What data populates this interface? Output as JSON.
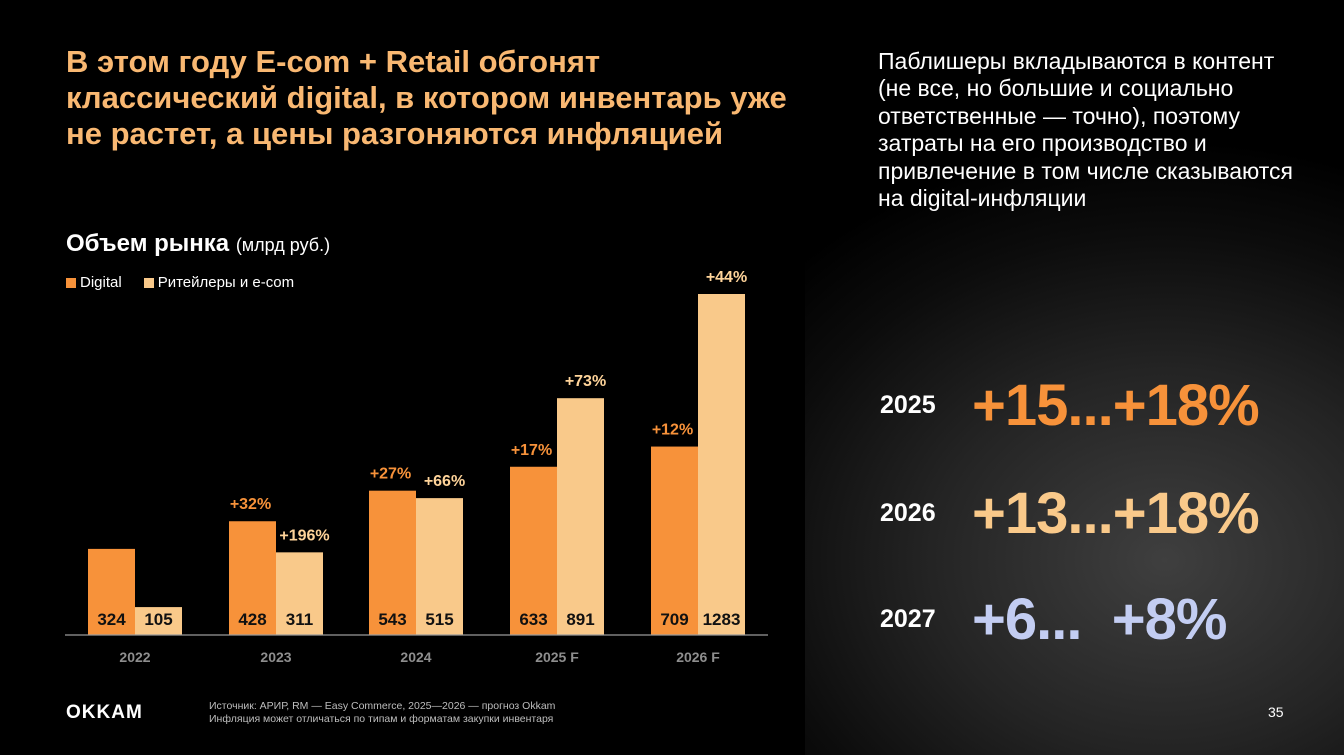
{
  "headline": "В этом году E-com + Retail обгонят классический digital, в котором инвентарь уже не растет, а цены разгоняются инфляцией",
  "chart_title": "Объем рынка",
  "chart_unit": "(млрд руб.)",
  "side_text": "Паблишеры вкладываются в контент (не все, но большие и социально ответственные — точно), поэтому затраты на его производство и привлечение в том числе сказываются на digital-инфляции",
  "forecast": [
    {
      "year": "2025",
      "value": "+15...+18%",
      "color": "#f7923a"
    },
    {
      "year": "2026",
      "value": "+13...+18%",
      "color": "#f9c98a"
    },
    {
      "year": "2027",
      "value": "+6...  +8%",
      "color": "#c3cdf2"
    }
  ],
  "logo": "OKKAM",
  "source_line1": "Источник: АРИР, RM — Easy Commerce, 2025—2026 — прогноз Okkam",
  "source_line2": "Инфляция может отличаться по типам и форматам закупки инвентаря",
  "page_number": "35",
  "colors": {
    "accent_orange": "#f7923a",
    "accent_light": "#f9c98a",
    "headline": "#f9b872",
    "growth_light": "#ffd49a"
  },
  "chart_data": {
    "type": "bar",
    "categories": [
      "2022",
      "2023",
      "2024",
      "2025 F",
      "2026 F"
    ],
    "series": [
      {
        "name": "Digital",
        "values": [
          324,
          428,
          543,
          633,
          709
        ],
        "growth": [
          "",
          "+32%",
          "+27%",
          "+17%",
          "+12%"
        ],
        "color": "#f7923a"
      },
      {
        "name": "Ритейлеры и e-com",
        "values": [
          105,
          311,
          515,
          891,
          1283
        ],
        "growth": [
          "",
          "+196%",
          "+66%",
          "+73%",
          "+44%"
        ],
        "color": "#f9c98a"
      }
    ],
    "title": "Объем рынка",
    "ylim": [
      0,
      1283
    ],
    "legend_position": "top-left",
    "grid": false
  }
}
